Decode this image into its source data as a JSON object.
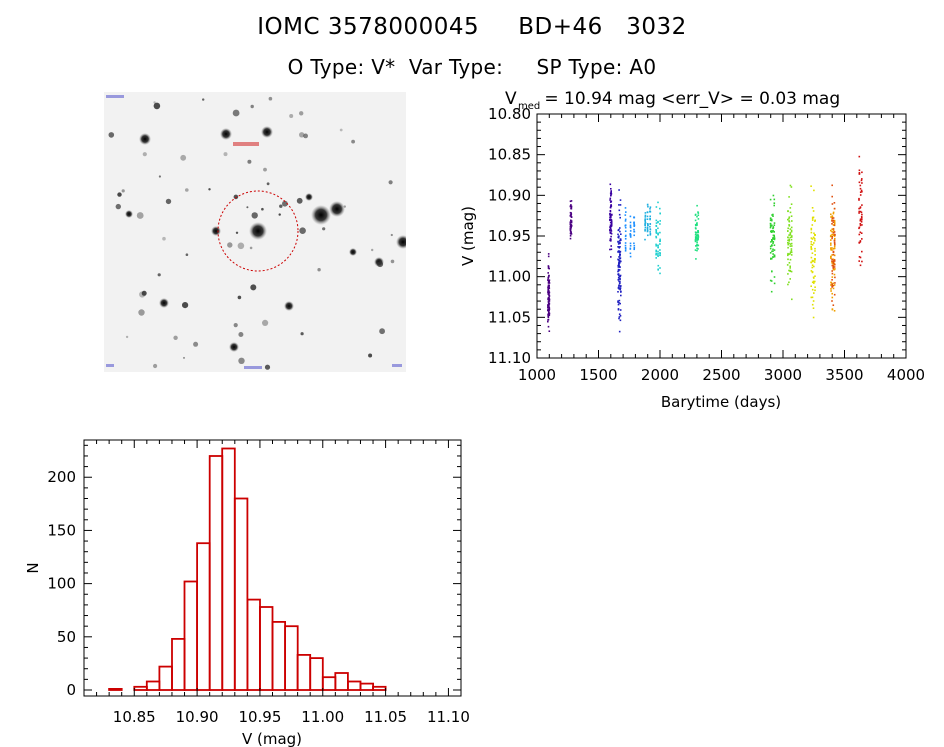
{
  "header": {
    "object_id": "IOMC 3578000045",
    "object_name": "BD+46   3032",
    "o_type_label": "O Type:",
    "o_type_value": "V*",
    "var_type_label": "Var Type:",
    "var_type_value": "",
    "sp_type_label": "SP Type:",
    "sp_type_value": "A0"
  },
  "image_panel": {
    "type": "image",
    "description_icon": "star-field-image"
  },
  "chart_data": [
    {
      "type": "scatter",
      "title_prefix": "V",
      "title_subscript": "med",
      "title_rest": " = 10.94 mag <err_V> = 0.03 mag",
      "xlabel": "Barytime (days)",
      "ylabel": "V (mag)",
      "xlim": [
        1000,
        4000
      ],
      "ylim": [
        11.1,
        10.8
      ],
      "x_ticks": [
        1000,
        1500,
        2000,
        2500,
        3000,
        3500,
        4000
      ],
      "x_tick_labels": [
        "1000",
        "1500",
        "2000",
        "2500",
        "3000",
        "3500",
        "4000"
      ],
      "y_ticks": [
        10.8,
        10.85,
        10.9,
        10.95,
        11.0,
        11.05,
        11.1
      ],
      "y_tick_labels": [
        "10.80",
        "10.85",
        "10.90",
        "10.95",
        "11.00",
        "11.05",
        "11.10"
      ],
      "series": [
        {
          "color": "#4b0082",
          "x": [
            1090,
            1092,
            1094,
            1096,
            1098,
            1100
          ],
          "y_range": [
            10.97,
            11.08
          ]
        },
        {
          "color": "#4b0082",
          "x": [
            1272,
            1276,
            1280
          ],
          "y_range": [
            10.89,
            10.97
          ]
        },
        {
          "color": "#3a00a0",
          "x": [
            1594,
            1598,
            1602,
            1606
          ],
          "y_range": [
            10.87,
            10.99
          ]
        },
        {
          "color": "#2020c0",
          "x": [
            1660,
            1664,
            1668,
            1672,
            1676,
            1680
          ],
          "y_range": [
            10.88,
            11.09
          ]
        },
        {
          "color": "#1e90ff",
          "x": [
            1720,
            1760,
            1790
          ],
          "y_range": [
            10.9,
            10.99
          ]
        },
        {
          "color": "#20b0e0",
          "x": [
            1880,
            1900,
            1920
          ],
          "y_range": [
            10.9,
            10.96
          ]
        },
        {
          "color": "#20d0d0",
          "x": [
            1970,
            1985,
            2000
          ],
          "y_range": [
            10.9,
            11.01
          ]
        },
        {
          "color": "#20e080",
          "x": [
            2290,
            2300,
            2310
          ],
          "y_range": [
            10.9,
            10.99
          ]
        },
        {
          "color": "#30d030",
          "x": [
            2900,
            2910,
            2920,
            2930
          ],
          "y_range": [
            10.87,
            11.03
          ]
        },
        {
          "color": "#80e020",
          "x": [
            3040,
            3050,
            3060,
            3070
          ],
          "y_range": [
            10.87,
            11.04
          ]
        },
        {
          "color": "#e0e000",
          "x": [
            3230,
            3240,
            3250,
            3260
          ],
          "y_range": [
            10.87,
            11.08
          ]
        },
        {
          "color": "#f0a000",
          "x": [
            3390,
            3400,
            3410,
            3420
          ],
          "y_range": [
            10.87,
            11.08
          ]
        },
        {
          "color": "#e05010",
          "x": [
            3400,
            3410,
            3420
          ],
          "y_range": [
            10.88,
            11.05
          ]
        },
        {
          "color": "#d01010",
          "x": [
            3620,
            3630,
            3640
          ],
          "y_range": [
            10.83,
            11.01
          ]
        }
      ]
    },
    {
      "type": "bar",
      "xlabel": "V (mag)",
      "ylabel": "N",
      "xlim": [
        10.81,
        11.11
      ],
      "ylim": [
        0,
        235
      ],
      "x_ticks": [
        10.85,
        10.9,
        10.95,
        11.0,
        11.05,
        11.1
      ],
      "x_tick_labels": [
        "10.85",
        "10.90",
        "10.95",
        "11.00",
        "11.05",
        "11.10"
      ],
      "y_ticks": [
        0,
        50,
        100,
        150,
        200
      ],
      "y_tick_labels": [
        "0",
        "50",
        "100",
        "150",
        "200"
      ],
      "bin_width": 0.01,
      "bin_starts": [
        10.83,
        10.84,
        10.85,
        10.86,
        10.87,
        10.88,
        10.89,
        10.9,
        10.91,
        10.92,
        10.93,
        10.94,
        10.95,
        10.96,
        10.97,
        10.98,
        10.99,
        11.0,
        11.01,
        11.02,
        11.03,
        11.04,
        11.05,
        11.06,
        11.07,
        11.08
      ],
      "values": [
        1,
        0,
        3,
        8,
        22,
        48,
        102,
        138,
        220,
        227,
        180,
        85,
        78,
        64,
        60,
        33,
        30,
        12,
        16,
        8,
        6,
        3,
        0,
        0,
        0,
        0
      ],
      "bar_color": "#cc0000"
    }
  ]
}
